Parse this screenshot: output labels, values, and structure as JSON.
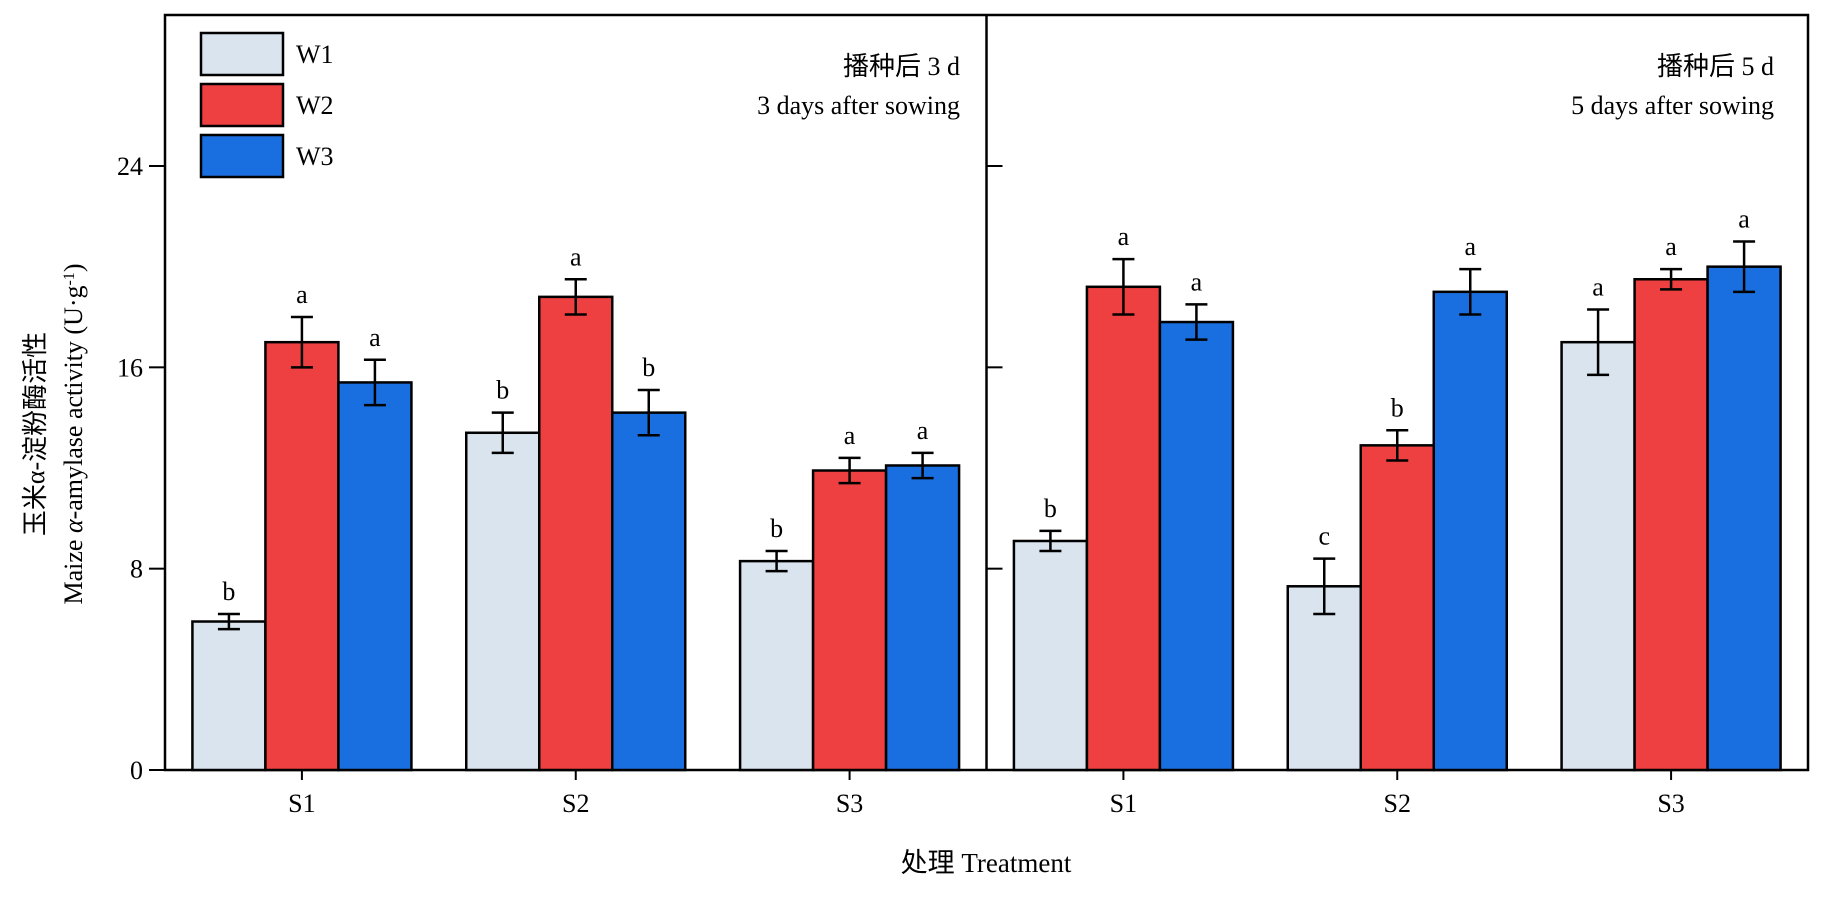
{
  "chart_data": {
    "type": "bar",
    "ylabel_cn": "玉米α-淀粉酶活性",
    "ylabel_en_prefix": "Maize ",
    "ylabel_en_greek": "α",
    "ylabel_en_suffix": "-amylase activity (U·g",
    "ylabel_en_sup": "-1",
    "ylabel_en_close": ")",
    "xlabel": "处理 Treatment",
    "ylim": [
      0,
      30
    ],
    "yticks": [
      0,
      8,
      16,
      24
    ],
    "grid": false,
    "legend_position": "top-left",
    "series": [
      {
        "name": "W1",
        "color": "#d9e4ef"
      },
      {
        "name": "W2",
        "color": "#ee4040"
      },
      {
        "name": "W3",
        "color": "#1a6fe0"
      }
    ],
    "panels": [
      {
        "title_cn": "播种后 3 d",
        "title_en": "3 days after sowing",
        "categories": [
          "S1",
          "S2",
          "S3"
        ],
        "values": [
          [
            5.9,
            17.0,
            15.4
          ],
          [
            13.4,
            18.8,
            14.2
          ],
          [
            8.3,
            11.9,
            12.1
          ]
        ],
        "errors": [
          [
            0.3,
            1.0,
            0.9
          ],
          [
            0.8,
            0.7,
            0.9
          ],
          [
            0.4,
            0.5,
            0.5
          ]
        ],
        "letters": [
          [
            "b",
            "a",
            "a"
          ],
          [
            "b",
            "a",
            "b"
          ],
          [
            "b",
            "a",
            "a"
          ]
        ]
      },
      {
        "title_cn": "播种后 5 d",
        "title_en": "5 days after sowing",
        "categories": [
          "S1",
          "S2",
          "S3"
        ],
        "values": [
          [
            9.1,
            19.2,
            17.8
          ],
          [
            7.3,
            12.9,
            19.0
          ],
          [
            17.0,
            19.5,
            20.0
          ]
        ],
        "errors": [
          [
            0.4,
            1.1,
            0.7
          ],
          [
            1.1,
            0.6,
            0.9
          ],
          [
            1.3,
            0.4,
            1.0
          ]
        ],
        "letters": [
          [
            "b",
            "a",
            "a"
          ],
          [
            "c",
            "b",
            "a"
          ],
          [
            "a",
            "a",
            "a"
          ]
        ]
      }
    ]
  }
}
